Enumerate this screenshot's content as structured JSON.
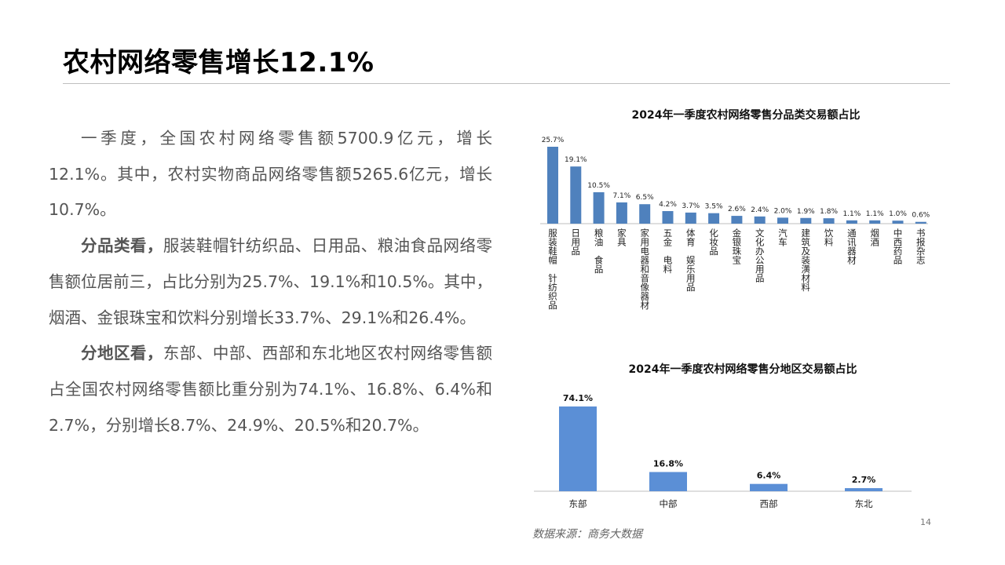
{
  "header": {
    "title": "农村网络零售增长12.1%"
  },
  "text": {
    "p1": {
      "body": "一季度，全国农村网络零售额5700.9亿元，增长12.1%。其中，农村实物商品网络零售额5265.6亿元，增长10.7%。"
    },
    "p2": {
      "lead": "分品类看，",
      "body": "服装鞋帽针纺织品、日用品、粮油食品网络零售额位居前三，占比分别为25.7%、19.1%和10.5%。其中，烟酒、金银珠宝和饮料分别增长33.7%、29.1%和26.4%。"
    },
    "p3": {
      "lead": "分地区看，",
      "body": "东部、中部、西部和东北地区农村网络零售额占全国农村网络零售额比重分别为74.1%、16.8%、6.4%和2.7%，分别增长8.7%、24.9%、20.5%和20.7%。"
    }
  },
  "chart_data": [
    {
      "type": "bar",
      "title": "2024年一季度农村网络零售分品类交易额占比",
      "categories": [
        "服装鞋帽　针纺织品",
        "日用品",
        "粮油　食品",
        "家具",
        "家用电器和音像器材",
        "五金　电料",
        "体育　娱乐用品",
        "化妆品",
        "金银珠宝",
        "文化办公用品",
        "汽车",
        "建筑及装潢材料",
        "饮料",
        "通讯器材",
        "烟酒",
        "中西药品",
        "书报杂志"
      ],
      "values": [
        25.7,
        19.1,
        10.5,
        7.1,
        6.5,
        4.2,
        3.7,
        3.5,
        2.6,
        2.4,
        2.0,
        1.9,
        1.8,
        1.1,
        1.1,
        1.0,
        0.6
      ],
      "labels": [
        "25.7%",
        "19.1%",
        "10.5%",
        "7.1%",
        "6.5%",
        "4.2%",
        "3.7%",
        "3.5%",
        "2.6%",
        "2.4%",
        "2.0%",
        "1.9%",
        "1.8%",
        "1.1%",
        "1.1%",
        "1.0%",
        "0.6%"
      ],
      "unit": "%",
      "ylim": [
        0,
        25.7
      ],
      "color": "#4f81bd",
      "grid": false
    },
    {
      "type": "bar",
      "title": "2024年一季度农村网络零售分地区交易额占比",
      "categories": [
        "东部",
        "中部",
        "西部",
        "东北"
      ],
      "values": [
        74.1,
        16.8,
        6.4,
        2.7
      ],
      "labels": [
        "74.1%",
        "16.8%",
        "6.4%",
        "2.7%"
      ],
      "unit": "%",
      "ylim": [
        0,
        74.1
      ],
      "color": "#5b8fd6",
      "grid": false
    }
  ],
  "footer": {
    "source": "数据来源：商务大数据",
    "page_number": "14"
  }
}
